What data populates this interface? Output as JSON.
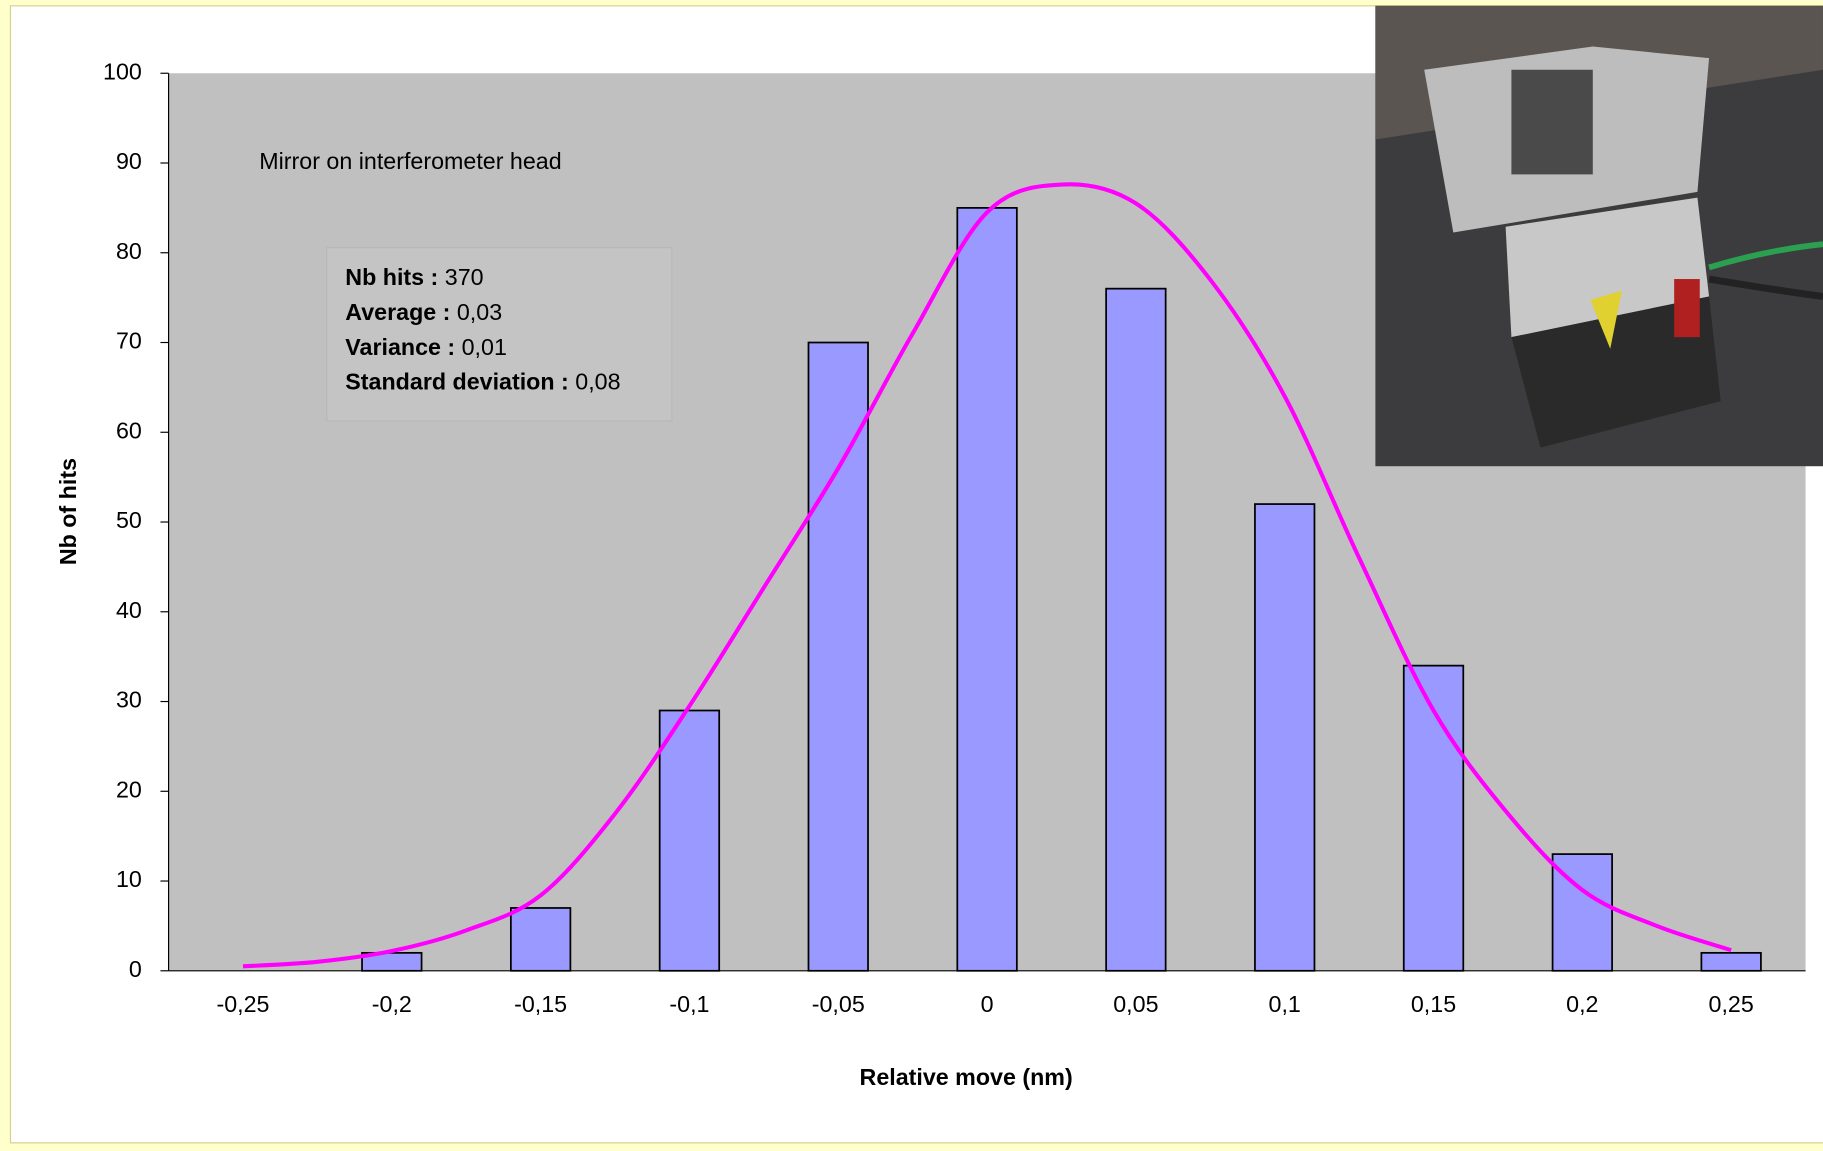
{
  "chart_data": {
    "type": "bar",
    "annotation": "Mirror on interferometer head",
    "stats": [
      {
        "label": "Nb hits :",
        "value": "370"
      },
      {
        "label": "Average :",
        "value": "0,03"
      },
      {
        "label": "Variance :",
        "value": "0,01"
      },
      {
        "label": "Standard deviation :",
        "value": "0,08"
      }
    ],
    "xlabel": "Relative move (nm)",
    "ylabel": "Nb of hits",
    "xlim": [
      -0.275,
      0.275
    ],
    "xticks": [
      {
        "value": -0.25,
        "label": "-0,25"
      },
      {
        "value": -0.2,
        "label": "-0,2"
      },
      {
        "value": -0.15,
        "label": "-0,15"
      },
      {
        "value": -0.1,
        "label": "-0,1"
      },
      {
        "value": -0.05,
        "label": "-0,05"
      },
      0,
      {
        "value": 0.05,
        "label": "0,05"
      },
      {
        "value": 0.1,
        "label": "0,1"
      },
      {
        "value": 0.15,
        "label": "0,15"
      },
      {
        "value": 0.2,
        "label": "0,2"
      },
      {
        "value": 0.25,
        "label": "0,25"
      }
    ],
    "ylim": [
      0,
      100
    ],
    "yticks": [
      0,
      10,
      20,
      30,
      40,
      50,
      60,
      70,
      80,
      90,
      100
    ],
    "grid": false,
    "series": [
      {
        "type": "bar",
        "color": "#9999ff",
        "x": [
          -0.25,
          -0.2,
          -0.15,
          -0.1,
          -0.05,
          0,
          0.05,
          0.1,
          0.15,
          0.2,
          0.25
        ],
        "values": [
          0,
          2,
          7,
          29,
          70,
          85,
          76,
          52,
          34,
          13,
          2
        ]
      },
      {
        "type": "line",
        "color": "#ff00ff",
        "x": [
          -0.25,
          -0.225,
          -0.2,
          -0.175,
          -0.15,
          -0.125,
          -0.1,
          -0.075,
          -0.05,
          -0.025,
          0,
          0.025,
          0.05,
          0.075,
          0.1,
          0.125,
          0.15,
          0.175,
          0.2,
          0.225,
          0.25
        ],
        "values": [
          0.5,
          1,
          2.2,
          4.5,
          8.4,
          17.5,
          29.5,
          42.7,
          56,
          71,
          84.5,
          87.6,
          85.5,
          77,
          64,
          46,
          29,
          17.5,
          9,
          5,
          2.3
        ]
      }
    ]
  }
}
